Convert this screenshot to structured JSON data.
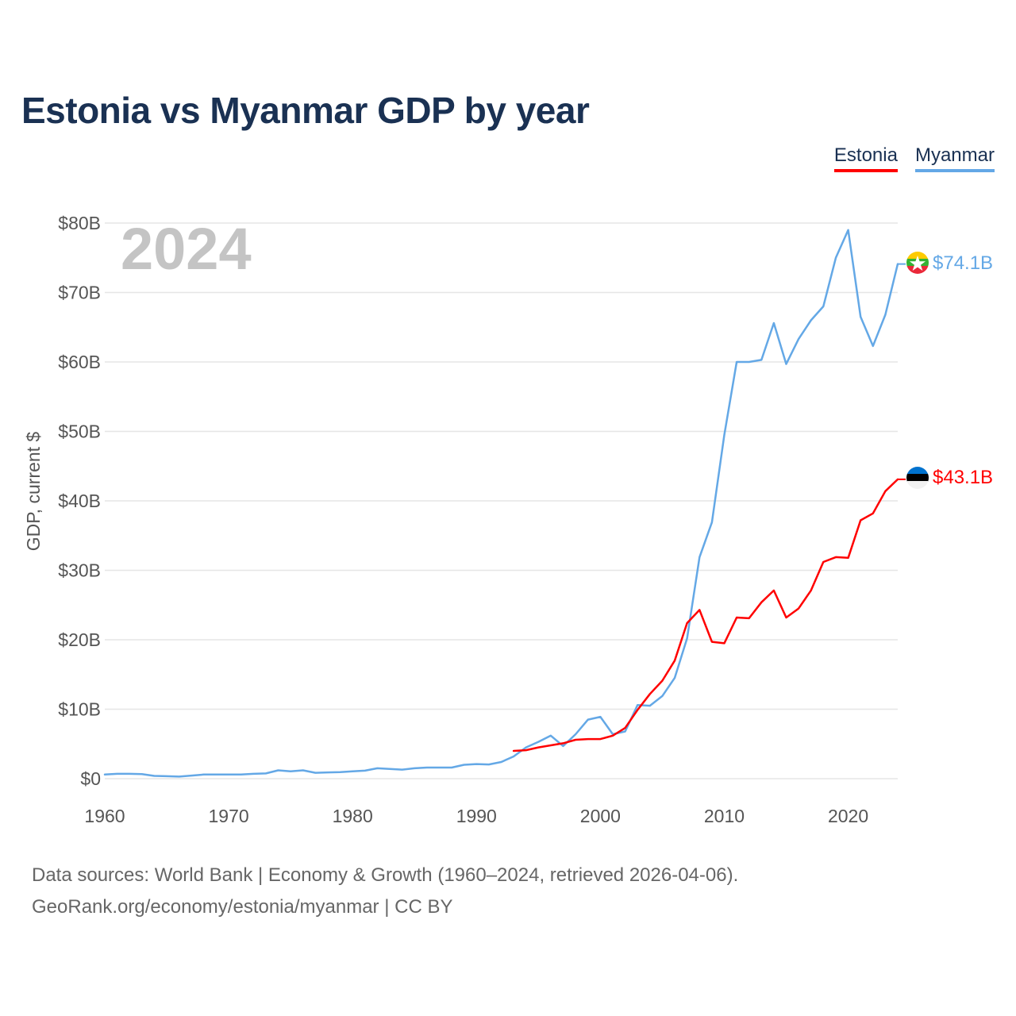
{
  "title": "Estonia vs Myanmar GDP by year",
  "legend": [
    {
      "name": "Estonia",
      "color": "#ff0000"
    },
    {
      "name": "Myanmar",
      "color": "#64a8e6"
    }
  ],
  "footer": {
    "line1": "Data sources: World Bank | Economy & Growth (1960–2024, retrieved 2026-04-06).",
    "line2": "GeoRank.org/economy/estonia/myanmar | CC BY"
  },
  "chart_data": {
    "type": "line",
    "year_label": "2024",
    "ylabel": "GDP, current $",
    "xlim": [
      1960,
      2024
    ],
    "ylim": [
      0,
      80
    ],
    "x_ticks": [
      "1960",
      "1970",
      "1980",
      "1990",
      "2000",
      "2010",
      "2020"
    ],
    "y_ticks": [
      "$0",
      "$10B",
      "$20B",
      "$30B",
      "$40B",
      "$50B",
      "$60B",
      "$70B",
      "$80B"
    ],
    "series": [
      {
        "name": "Myanmar",
        "color": "#64a8e6",
        "end_label": "$74.1B",
        "x": [
          1960,
          1961,
          1962,
          1963,
          1964,
          1965,
          1966,
          1967,
          1968,
          1969,
          1970,
          1971,
          1972,
          1973,
          1974,
          1975,
          1976,
          1977,
          1978,
          1979,
          1980,
          1981,
          1982,
          1983,
          1984,
          1985,
          1986,
          1987,
          1988,
          1989,
          1990,
          1991,
          1992,
          1993,
          1994,
          1995,
          1996,
          1997,
          1998,
          1999,
          2000,
          2001,
          2002,
          2003,
          2004,
          2005,
          2006,
          2007,
          2008,
          2009,
          2010,
          2011,
          2012,
          2013,
          2014,
          2015,
          2016,
          2017,
          2018,
          2019,
          2020,
          2021,
          2022,
          2023,
          2024
        ],
        "values": [
          0.6,
          0.7,
          0.7,
          0.65,
          0.4,
          0.35,
          0.3,
          0.45,
          0.6,
          0.6,
          0.6,
          0.6,
          0.7,
          0.75,
          1.2,
          1.05,
          1.2,
          0.85,
          0.9,
          0.95,
          1.05,
          1.15,
          1.5,
          1.4,
          1.3,
          1.5,
          1.6,
          1.6,
          1.6,
          2.0,
          2.1,
          2.05,
          2.4,
          3.2,
          4.5,
          5.3,
          6.2,
          4.7,
          6.4,
          8.5,
          8.9,
          6.4,
          6.8,
          10.6,
          10.5,
          11.9,
          14.5,
          20.2,
          31.9,
          36.9,
          49.5,
          60.0,
          60.0,
          60.3,
          65.6,
          59.7,
          63.3,
          66.0,
          68.0,
          75.0,
          79.0,
          66.5,
          62.3,
          66.8,
          74.1
        ]
      },
      {
        "name": "Estonia",
        "color": "#ff0000",
        "end_label": "$43.1B",
        "x": [
          1993,
          1994,
          1995,
          1996,
          1997,
          1998,
          1999,
          2000,
          2001,
          2002,
          2003,
          2004,
          2005,
          2006,
          2007,
          2008,
          2009,
          2010,
          2011,
          2012,
          2013,
          2014,
          2015,
          2016,
          2017,
          2018,
          2019,
          2020,
          2021,
          2022,
          2023,
          2024
        ],
        "values": [
          4.0,
          4.1,
          4.5,
          4.8,
          5.1,
          5.6,
          5.7,
          5.7,
          6.2,
          7.3,
          9.9,
          12.2,
          14.1,
          17.0,
          22.4,
          24.3,
          19.7,
          19.5,
          23.2,
          23.1,
          25.4,
          27.1,
          23.2,
          24.5,
          27.1,
          31.2,
          31.9,
          31.8,
          37.2,
          38.2,
          41.4,
          43.1
        ]
      }
    ]
  }
}
